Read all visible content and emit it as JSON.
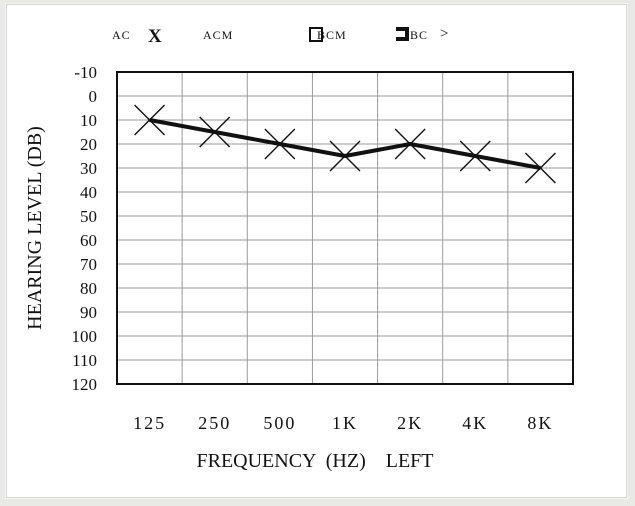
{
  "legend": [
    {
      "text": "AC",
      "symbol": "X"
    },
    {
      "text": "ACM",
      "symbol": ""
    },
    {
      "text": "BCM",
      "symbol": ""
    },
    {
      "text": "BC",
      "symbol": ">"
    }
  ],
  "chart_data": {
    "type": "line",
    "title": "",
    "xlabel": "FREQUENCY  (HZ)    LEFT",
    "ylabel": "HEARING LEVEL (DB)",
    "categories": [
      "125",
      "250",
      "500",
      "1K",
      "2K",
      "4K",
      "8K"
    ],
    "series": [
      {
        "values": [
          10,
          15,
          20,
          25,
          20,
          25,
          30
        ],
        "marker": "X",
        "color": "#111111"
      }
    ],
    "ylim": [
      -10,
      120
    ],
    "y_inverted": true,
    "yticks": [
      "-10",
      "0",
      "10",
      "20",
      "30",
      "40",
      "50",
      "60",
      "70",
      "80",
      "90",
      "100",
      "110",
      "120"
    ],
    "grid": true
  }
}
